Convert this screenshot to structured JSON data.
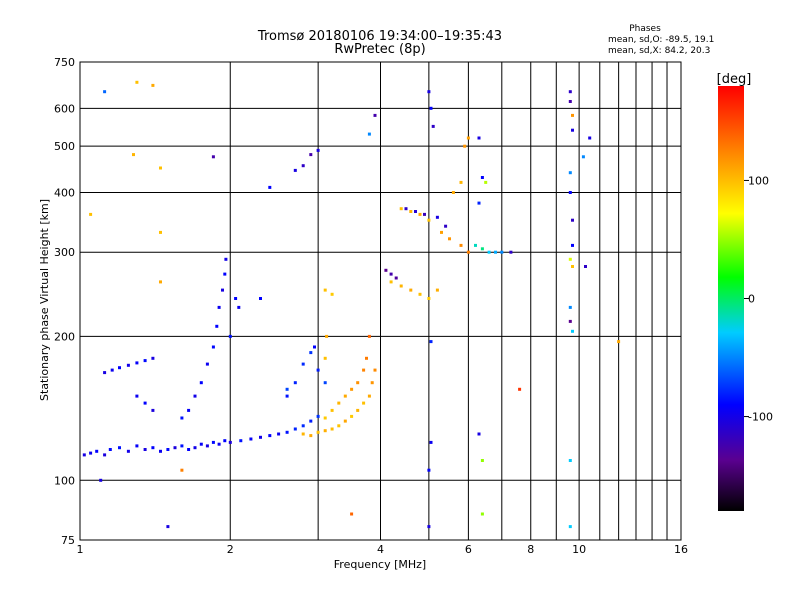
{
  "chart_data": {
    "type": "scatter",
    "title": "Tromsø 20180106 19:34:00–19:35:43",
    "subtitle": "RwPretec (8p)",
    "xlabel": "Frequency [MHz]",
    "ylabel": "Stationary phase Virtual Height [km]",
    "x_scale": "log",
    "y_scale": "log",
    "xlim": [
      1,
      16
    ],
    "ylim": [
      75,
      750
    ],
    "x_ticks": [
      1,
      2,
      4,
      6,
      8,
      10,
      16
    ],
    "x_tick_labels": [
      "1",
      "2",
      "4",
      "6",
      "8",
      "10",
      "16"
    ],
    "y_ticks": [
      75,
      100,
      200,
      300,
      400,
      500,
      600,
      750
    ],
    "y_tick_labels": [
      "75",
      "100",
      "200",
      "300",
      "400",
      "500",
      "600",
      "750"
    ],
    "grid": true,
    "stats": {
      "heading": "Phases",
      "line_o": "mean, sd,O: -89.5, 19.1",
      "line_x": "mean, sd,X:  84.2, 20.3"
    },
    "colorbar": {
      "label": "[deg]",
      "range": [
        -180,
        180
      ],
      "ticks": [
        100,
        0,
        -100
      ],
      "tick_labels": [
        "100",
        "0",
        "-100"
      ],
      "colormap": "rainbow"
    },
    "series": [
      {
        "values": [
          {
            "x": 1.02,
            "y": 113,
            "phase": -110
          },
          {
            "x": 1.05,
            "y": 114,
            "phase": -105
          },
          {
            "x": 1.08,
            "y": 115,
            "phase": -100
          },
          {
            "x": 1.12,
            "y": 113,
            "phase": -112
          },
          {
            "x": 1.15,
            "y": 116,
            "phase": -98
          },
          {
            "x": 1.2,
            "y": 117,
            "phase": -95
          },
          {
            "x": 1.25,
            "y": 115,
            "phase": -108
          },
          {
            "x": 1.3,
            "y": 118,
            "phase": -102
          },
          {
            "x": 1.35,
            "y": 116,
            "phase": -110
          },
          {
            "x": 1.4,
            "y": 117,
            "phase": -100
          },
          {
            "x": 1.45,
            "y": 115,
            "phase": -105
          },
          {
            "x": 1.5,
            "y": 116,
            "phase": -98
          },
          {
            "x": 1.55,
            "y": 117,
            "phase": -112
          },
          {
            "x": 1.6,
            "y": 118,
            "phase": -95
          },
          {
            "x": 1.65,
            "y": 116,
            "phase": -100
          },
          {
            "x": 1.7,
            "y": 117,
            "phase": -108
          },
          {
            "x": 1.75,
            "y": 119,
            "phase": -102
          },
          {
            "x": 1.8,
            "y": 118,
            "phase": -110
          },
          {
            "x": 1.85,
            "y": 120,
            "phase": -98
          },
          {
            "x": 1.9,
            "y": 119,
            "phase": -105
          },
          {
            "x": 1.95,
            "y": 121,
            "phase": -100
          },
          {
            "x": 2.0,
            "y": 120,
            "phase": -112
          },
          {
            "x": 2.1,
            "y": 121,
            "phase": -95
          },
          {
            "x": 2.2,
            "y": 122,
            "phase": -102
          },
          {
            "x": 2.3,
            "y": 123,
            "phase": -108
          },
          {
            "x": 2.4,
            "y": 124,
            "phase": -100
          },
          {
            "x": 2.5,
            "y": 125,
            "phase": -105
          },
          {
            "x": 2.6,
            "y": 126,
            "phase": -95
          },
          {
            "x": 2.7,
            "y": 128,
            "phase": -90
          },
          {
            "x": 2.8,
            "y": 130,
            "phase": -88
          },
          {
            "x": 2.9,
            "y": 133,
            "phase": -92
          },
          {
            "x": 3.0,
            "y": 136,
            "phase": -85
          },
          {
            "x": 1.12,
            "y": 168,
            "phase": -110
          },
          {
            "x": 1.16,
            "y": 170,
            "phase": -105
          },
          {
            "x": 1.2,
            "y": 172,
            "phase": -100
          },
          {
            "x": 1.25,
            "y": 174,
            "phase": -108
          },
          {
            "x": 1.3,
            "y": 176,
            "phase": -102
          },
          {
            "x": 1.35,
            "y": 178,
            "phase": -98
          },
          {
            "x": 1.4,
            "y": 180,
            "phase": -110
          },
          {
            "x": 1.3,
            "y": 150,
            "phase": -105
          },
          {
            "x": 1.35,
            "y": 145,
            "phase": -100
          },
          {
            "x": 1.4,
            "y": 140,
            "phase": -112
          },
          {
            "x": 1.6,
            "y": 135,
            "phase": -95
          },
          {
            "x": 1.65,
            "y": 140,
            "phase": -102
          },
          {
            "x": 1.7,
            "y": 150,
            "phase": -108
          },
          {
            "x": 1.75,
            "y": 160,
            "phase": -100
          },
          {
            "x": 1.8,
            "y": 175,
            "phase": -105
          },
          {
            "x": 1.85,
            "y": 190,
            "phase": -98
          },
          {
            "x": 1.88,
            "y": 210,
            "phase": -100
          },
          {
            "x": 1.9,
            "y": 230,
            "phase": -105
          },
          {
            "x": 1.93,
            "y": 250,
            "phase": -110
          },
          {
            "x": 1.95,
            "y": 270,
            "phase": -100
          },
          {
            "x": 1.96,
            "y": 290,
            "phase": -108
          },
          {
            "x": 2.0,
            "y": 200,
            "phase": -95
          },
          {
            "x": 2.05,
            "y": 240,
            "phase": -100
          },
          {
            "x": 2.08,
            "y": 230,
            "phase": -105
          },
          {
            "x": 2.3,
            "y": 240,
            "phase": -100
          },
          {
            "x": 2.6,
            "y": 150,
            "phase": -95
          },
          {
            "x": 2.7,
            "y": 160,
            "phase": -90
          },
          {
            "x": 2.8,
            "y": 175,
            "phase": -88
          },
          {
            "x": 2.9,
            "y": 185,
            "phase": -85
          },
          {
            "x": 3.0,
            "y": 170,
            "phase": -92
          },
          {
            "x": 2.6,
            "y": 155,
            "phase": -80
          },
          {
            "x": 2.95,
            "y": 190,
            "phase": -100
          },
          {
            "x": 3.1,
            "y": 160,
            "phase": -80
          }
        ]
      },
      {
        "values": [
          {
            "x": 2.8,
            "y": 125,
            "phase": 105
          },
          {
            "x": 2.9,
            "y": 124,
            "phase": 110
          },
          {
            "x": 3.0,
            "y": 126,
            "phase": 100
          },
          {
            "x": 3.1,
            "y": 127,
            "phase": 108
          },
          {
            "x": 3.2,
            "y": 128,
            "phase": 102
          },
          {
            "x": 3.3,
            "y": 130,
            "phase": 98
          },
          {
            "x": 3.4,
            "y": 133,
            "phase": 112
          },
          {
            "x": 3.5,
            "y": 136,
            "phase": 95
          },
          {
            "x": 3.6,
            "y": 140,
            "phase": 105
          },
          {
            "x": 3.7,
            "y": 145,
            "phase": 100
          },
          {
            "x": 3.8,
            "y": 150,
            "phase": 110
          },
          {
            "x": 3.85,
            "y": 160,
            "phase": 120
          },
          {
            "x": 3.9,
            "y": 170,
            "phase": 125
          },
          {
            "x": 3.1,
            "y": 135,
            "phase": 95
          },
          {
            "x": 3.2,
            "y": 140,
            "phase": 100
          },
          {
            "x": 3.3,
            "y": 145,
            "phase": 105
          },
          {
            "x": 3.4,
            "y": 150,
            "phase": 110
          },
          {
            "x": 3.5,
            "y": 155,
            "phase": 118
          },
          {
            "x": 3.6,
            "y": 160,
            "phase": 122
          },
          {
            "x": 3.7,
            "y": 170,
            "phase": 128
          },
          {
            "x": 3.75,
            "y": 180,
            "phase": 132
          },
          {
            "x": 3.8,
            "y": 200,
            "phase": 140
          },
          {
            "x": 3.1,
            "y": 180,
            "phase": 100
          },
          {
            "x": 3.12,
            "y": 200,
            "phase": 110
          },
          {
            "x": 3.1,
            "y": 250,
            "phase": 100
          },
          {
            "x": 3.2,
            "y": 245,
            "phase": 95
          },
          {
            "x": 4.2,
            "y": 260,
            "phase": 100
          },
          {
            "x": 4.4,
            "y": 255,
            "phase": 105
          },
          {
            "x": 4.6,
            "y": 250,
            "phase": 110
          },
          {
            "x": 4.8,
            "y": 245,
            "phase": 100
          },
          {
            "x": 5.0,
            "y": 240,
            "phase": 95
          },
          {
            "x": 5.2,
            "y": 250,
            "phase": 108
          },
          {
            "x": 4.4,
            "y": 370,
            "phase": 100
          },
          {
            "x": 4.6,
            "y": 365,
            "phase": 105
          },
          {
            "x": 4.8,
            "y": 360,
            "phase": 110
          },
          {
            "x": 5.0,
            "y": 350,
            "phase": 98
          },
          {
            "x": 5.3,
            "y": 330,
            "phase": 115
          },
          {
            "x": 5.5,
            "y": 320,
            "phase": 120
          },
          {
            "x": 5.8,
            "y": 310,
            "phase": 125
          },
          {
            "x": 6.0,
            "y": 300,
            "phase": 130
          },
          {
            "x": 5.6,
            "y": 400,
            "phase": 110
          },
          {
            "x": 5.8,
            "y": 420,
            "phase": 105
          },
          {
            "x": 5.9,
            "y": 500,
            "phase": 120
          },
          {
            "x": 6.0,
            "y": 520,
            "phase": 115
          },
          {
            "x": 1.3,
            "y": 680,
            "phase": 100
          },
          {
            "x": 1.4,
            "y": 670,
            "phase": 110
          },
          {
            "x": 1.45,
            "y": 450,
            "phase": 100
          },
          {
            "x": 1.28,
            "y": 480,
            "phase": 105
          },
          {
            "x": 1.45,
            "y": 260,
            "phase": 110
          },
          {
            "x": 1.45,
            "y": 330,
            "phase": 100
          },
          {
            "x": 12.0,
            "y": 195,
            "phase": 110
          },
          {
            "x": 1.05,
            "y": 360,
            "phase": 100
          },
          {
            "x": 1.6,
            "y": 105,
            "phase": 130
          },
          {
            "x": 3.5,
            "y": 85,
            "phase": 140
          }
        ]
      },
      {
        "values": [
          {
            "x": 4.1,
            "y": 275,
            "phase": -140
          },
          {
            "x": 4.2,
            "y": 270,
            "phase": -130
          },
          {
            "x": 4.3,
            "y": 265,
            "phase": -135
          },
          {
            "x": 4.5,
            "y": 370,
            "phase": -120
          },
          {
            "x": 4.7,
            "y": 365,
            "phase": -115
          },
          {
            "x": 4.9,
            "y": 360,
            "phase": -125
          },
          {
            "x": 5.2,
            "y": 355,
            "phase": -110
          },
          {
            "x": 5.4,
            "y": 340,
            "phase": -120
          },
          {
            "x": 5.0,
            "y": 650,
            "phase": -110
          },
          {
            "x": 5.05,
            "y": 600,
            "phase": -100
          },
          {
            "x": 5.1,
            "y": 550,
            "phase": -120
          },
          {
            "x": 5.0,
            "y": 80,
            "phase": -110
          },
          {
            "x": 5.0,
            "y": 105,
            "phase": -100
          },
          {
            "x": 5.05,
            "y": 120,
            "phase": -105
          },
          {
            "x": 5.05,
            "y": 195,
            "phase": -90
          },
          {
            "x": 6.2,
            "y": 310,
            "phase": -30
          },
          {
            "x": 6.4,
            "y": 305,
            "phase": -20
          },
          {
            "x": 6.6,
            "y": 300,
            "phase": -40
          },
          {
            "x": 6.8,
            "y": 300,
            "phase": -50
          },
          {
            "x": 7.0,
            "y": 300,
            "phase": -60
          },
          {
            "x": 7.3,
            "y": 300,
            "phase": -120
          },
          {
            "x": 6.3,
            "y": 520,
            "phase": -110
          },
          {
            "x": 6.4,
            "y": 430,
            "phase": -100
          },
          {
            "x": 6.3,
            "y": 380,
            "phase": -90
          },
          {
            "x": 6.5,
            "y": 420,
            "phase": 50
          },
          {
            "x": 6.4,
            "y": 85,
            "phase": 40
          },
          {
            "x": 6.4,
            "y": 110,
            "phase": 40
          },
          {
            "x": 6.3,
            "y": 125,
            "phase": -110
          },
          {
            "x": 7.6,
            "y": 155,
            "phase": 160
          },
          {
            "x": 9.6,
            "y": 650,
            "phase": -120
          },
          {
            "x": 9.6,
            "y": 620,
            "phase": -130
          },
          {
            "x": 9.7,
            "y": 580,
            "phase": 120
          },
          {
            "x": 9.7,
            "y": 540,
            "phase": -110
          },
          {
            "x": 9.6,
            "y": 440,
            "phase": -60
          },
          {
            "x": 9.6,
            "y": 400,
            "phase": -100
          },
          {
            "x": 9.7,
            "y": 350,
            "phase": -120
          },
          {
            "x": 9.7,
            "y": 310,
            "phase": -100
          },
          {
            "x": 9.6,
            "y": 290,
            "phase": 60
          },
          {
            "x": 9.7,
            "y": 280,
            "phase": 100
          },
          {
            "x": 9.6,
            "y": 230,
            "phase": -60
          },
          {
            "x": 9.6,
            "y": 215,
            "phase": -140
          },
          {
            "x": 9.7,
            "y": 205,
            "phase": -40
          },
          {
            "x": 9.6,
            "y": 110,
            "phase": -40
          },
          {
            "x": 9.6,
            "y": 80,
            "phase": -40
          },
          {
            "x": 10.5,
            "y": 520,
            "phase": -110
          },
          {
            "x": 10.3,
            "y": 280,
            "phase": -120
          },
          {
            "x": 10.2,
            "y": 475,
            "phase": -60
          },
          {
            "x": 2.7,
            "y": 445,
            "phase": -110
          },
          {
            "x": 2.8,
            "y": 455,
            "phase": -120
          },
          {
            "x": 2.9,
            "y": 480,
            "phase": -130
          },
          {
            "x": 3.0,
            "y": 490,
            "phase": -110
          },
          {
            "x": 2.4,
            "y": 410,
            "phase": -100
          },
          {
            "x": 1.85,
            "y": 475,
            "phase": -130
          },
          {
            "x": 1.5,
            "y": 80,
            "phase": -110
          },
          {
            "x": 1.1,
            "y": 100,
            "phase": -110
          },
          {
            "x": 1.12,
            "y": 650,
            "phase": -70
          },
          {
            "x": 3.9,
            "y": 580,
            "phase": -130
          },
          {
            "x": 3.8,
            "y": 530,
            "phase": -60
          }
        ]
      }
    ]
  }
}
